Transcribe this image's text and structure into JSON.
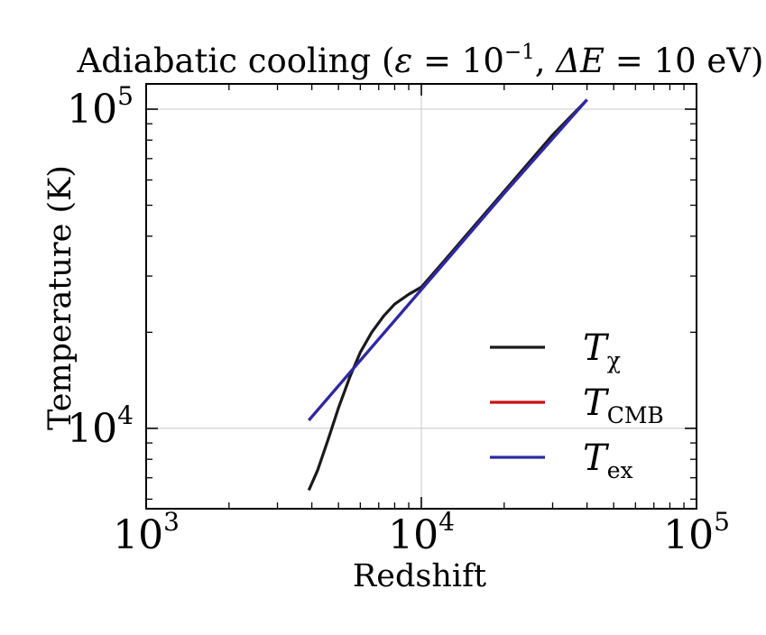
{
  "chart_data": {
    "type": "line",
    "title": "Adiabatic cooling (ε = 10⁻¹, ΔE = 10 eV)",
    "title_parts": {
      "prefix": "Adiabatic cooling (",
      "eps_symbol": "ε",
      "eq1": " = 10",
      "eps_exp": "−1",
      "sep": ", ",
      "delta_symbol": "ΔE",
      "eq2": " = 10 eV)"
    },
    "xlabel": "Redshift",
    "ylabel": "Temperature (K)",
    "xscale": "log",
    "yscale": "log",
    "xlim": [
      1000,
      100000
    ],
    "ylim": [
      5600,
      120000
    ],
    "grid": true,
    "x_ticks": [
      {
        "base": "10",
        "exp": "3"
      },
      {
        "base": "10",
        "exp": "4"
      },
      {
        "base": "10",
        "exp": "5"
      }
    ],
    "y_ticks": [
      {
        "base": "10",
        "exp": "4"
      },
      {
        "base": "10",
        "exp": "5"
      }
    ],
    "legend_position": "lower-right",
    "series": [
      {
        "name": "T_χ",
        "label_main": "T",
        "label_sub": "χ",
        "color": "#1a1a1a",
        "points": [
          [
            3900,
            6400
          ],
          [
            4200,
            7400
          ],
          [
            4600,
            9300
          ],
          [
            5000,
            11600
          ],
          [
            5500,
            14500
          ],
          [
            6000,
            17300
          ],
          [
            6600,
            20000
          ],
          [
            7300,
            22500
          ],
          [
            8000,
            24500
          ],
          [
            9000,
            26300
          ],
          [
            10000,
            27700
          ],
          [
            12000,
            33200
          ],
          [
            15000,
            41500
          ],
          [
            20000,
            55300
          ],
          [
            30000,
            83000
          ],
          [
            40000,
            107000
          ]
        ]
      },
      {
        "name": "T_CMB",
        "label_main": "T",
        "label_sub": "CMB",
        "color": "#cc1111",
        "points": [
          [
            3900,
            10600
          ],
          [
            10000,
            27200
          ],
          [
            20000,
            54500
          ],
          [
            40000,
            107000
          ]
        ]
      },
      {
        "name": "T_ex",
        "label_main": "T",
        "label_sub": "ex",
        "color": "#2a2aa8",
        "points": [
          [
            3900,
            10600
          ],
          [
            10000,
            27200
          ],
          [
            20000,
            54500
          ],
          [
            40000,
            107000
          ]
        ]
      }
    ]
  }
}
